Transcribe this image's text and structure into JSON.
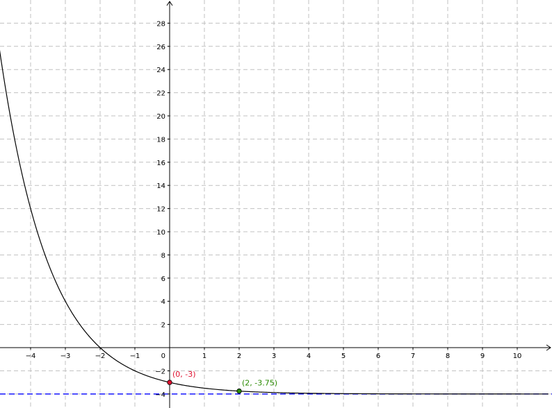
{
  "chart_data": {
    "type": "line",
    "title": "",
    "xlabel": "",
    "ylabel": "",
    "xlim": [
      -4.9,
      10.9
    ],
    "ylim": [
      -4.8,
      30
    ],
    "grid": true,
    "x_ticks": [
      -4,
      -3,
      -2,
      -1,
      1,
      2,
      3,
      4,
      5,
      6,
      7,
      8,
      9,
      10
    ],
    "y_ticks": [
      -4,
      -2,
      2,
      4,
      6,
      8,
      10,
      12,
      14,
      16,
      18,
      20,
      22,
      24,
      26,
      28
    ],
    "origin_label": "0",
    "series": [
      {
        "function": "y = 1*(0.5)^x - 4",
        "color": "#000000",
        "x_range": [
          -4.9,
          10.9
        ]
      }
    ],
    "asymptote": {
      "y": -4,
      "color": "#0000ff"
    },
    "points": [
      {
        "x": 0,
        "y": -3,
        "label": "(0, -3)",
        "color": "#e0102f"
      },
      {
        "x": 2,
        "y": -3.75,
        "label": "(2, -3.75)",
        "color": "#2a8a00"
      }
    ]
  }
}
